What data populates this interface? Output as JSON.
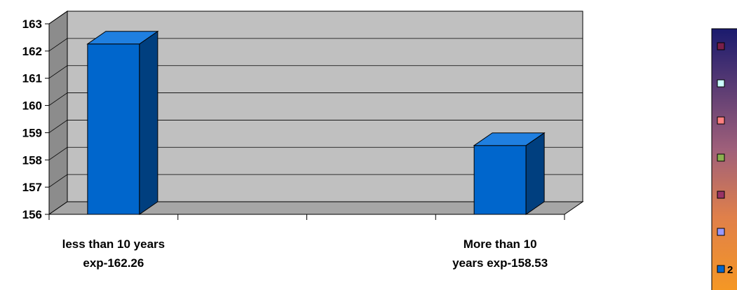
{
  "chart_data": {
    "type": "bar",
    "style": "3d-column",
    "categories": [
      [
        "less than 10 years",
        "exp-162.26"
      ],
      [
        "",
        ""
      ],
      [
        "",
        ""
      ],
      [
        "More than 10",
        "years exp-158.53"
      ]
    ],
    "values": [
      162.26,
      null,
      null,
      158.53
    ],
    "ylim": [
      156,
      163
    ],
    "yticks": [
      156,
      157,
      158,
      159,
      160,
      161,
      162,
      163
    ],
    "grid": true,
    "legend_placement": "right",
    "colors": {
      "bar_front": "#0066cc",
      "bar_side": "#003f7f",
      "bar_top": "#1f7fe0",
      "wall": "#c0c0c0",
      "wall_side": "#8c8c8c",
      "floor": "#a6a6a6",
      "legend_top": "#1a1a6e",
      "legend_mid": "#c46a5a",
      "legend_bottom": "#f79a20"
    },
    "legend": {
      "swatch_colors": [
        "#7a1f4a",
        "#ccffff",
        "#ff8080",
        "#8cb050",
        "#993366",
        "#9999ff",
        "#0066cc"
      ],
      "visible_text": [
        "",
        "",
        "",
        "",
        "",
        "",
        "2"
      ]
    }
  }
}
